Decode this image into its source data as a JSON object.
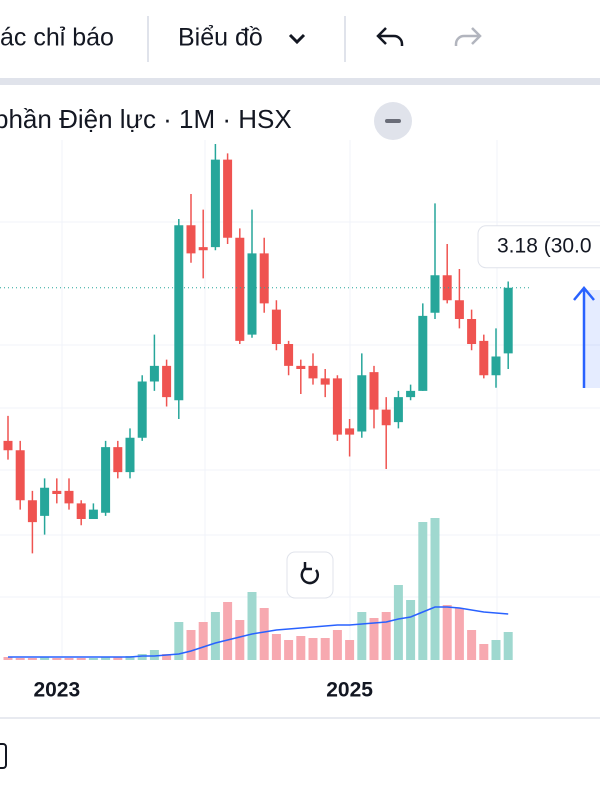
{
  "toolbar": {
    "indicators": "ác chỉ báo",
    "chart_type": "Biểu đồ"
  },
  "chart_data": {
    "type": "candlestick",
    "title": "phần Điện lực · 1M · HSX",
    "last_label": "3.18 (30.0",
    "categories": [
      null,
      null,
      null,
      null,
      "2023",
      null,
      null,
      null,
      null,
      null,
      null,
      null,
      null,
      null,
      null,
      null,
      null,
      null,
      null,
      null,
      null,
      null,
      null,
      null,
      null,
      null,
      null,
      null,
      "2025",
      null,
      null,
      null,
      null,
      null,
      null,
      null,
      null,
      null,
      null,
      null,
      null,
      null
    ],
    "open": [
      2.69,
      2.66,
      2.5,
      2.45,
      2.53,
      2.53,
      2.49,
      2.44,
      2.46,
      2.67,
      2.59,
      2.7,
      2.88,
      2.93,
      2.82,
      3.38,
      3.31,
      3.31,
      3.59,
      3.34,
      3.03,
      3.29,
      3.11,
      3.0,
      2.93,
      2.93,
      2.89,
      2.89,
      2.73,
      2.72,
      2.91,
      2.79,
      2.75,
      2.83,
      2.85,
      3.1,
      3.22,
      3.14,
      3.08,
      3.01,
      2.9,
      2.97
    ],
    "high": [
      2.77,
      2.69,
      2.53,
      2.57,
      2.57,
      2.57,
      2.5,
      2.49,
      2.69,
      2.69,
      2.73,
      2.9,
      3.03,
      2.95,
      3.4,
      3.48,
      3.43,
      3.64,
      3.61,
      3.37,
      3.43,
      3.34,
      3.14,
      3.01,
      2.95,
      2.97,
      2.92,
      2.9,
      2.76,
      2.97,
      2.93,
      2.83,
      2.85,
      2.87,
      3.13,
      3.45,
      3.32,
      3.24,
      3.11,
      3.03,
      3.05,
      3.2
    ],
    "low": [
      2.63,
      2.47,
      2.33,
      2.39,
      2.49,
      2.47,
      2.42,
      2.44,
      2.45,
      2.57,
      2.57,
      2.69,
      2.85,
      2.8,
      2.76,
      3.26,
      3.21,
      3.3,
      3.32,
      3.0,
      3.02,
      3.1,
      2.98,
      2.9,
      2.84,
      2.87,
      2.83,
      2.69,
      2.64,
      2.7,
      2.73,
      2.6,
      2.73,
      2.82,
      2.85,
      3.08,
      3.13,
      3.05,
      2.98,
      2.89,
      2.86,
      2.92
    ],
    "close": [
      2.66,
      2.5,
      2.43,
      2.54,
      2.52,
      2.49,
      2.44,
      2.47,
      2.67,
      2.59,
      2.7,
      2.88,
      2.93,
      2.83,
      3.38,
      3.29,
      3.3,
      3.59,
      3.34,
      3.01,
      3.29,
      3.13,
      3.0,
      2.93,
      2.92,
      2.89,
      2.87,
      2.71,
      2.71,
      2.9,
      2.79,
      2.74,
      2.83,
      2.85,
      3.09,
      3.22,
      3.14,
      3.08,
      3.0,
      2.9,
      2.96,
      3.18
    ],
    "ylim": [
      2.2,
      3.8
    ],
    "up_color": "#26a69a",
    "down_color": "#ef5350",
    "volume": {
      "values": [
        3,
        2,
        2,
        3,
        2,
        2,
        2,
        2,
        3,
        3,
        4,
        6,
        10,
        6,
        38,
        30,
        38,
        48,
        58,
        40,
        68,
        52,
        26,
        20,
        24,
        22,
        22,
        30,
        20,
        48,
        42,
        48,
        75,
        60,
        138,
        142,
        55,
        52,
        30,
        16,
        20,
        28
      ],
      "ma": [
        3,
        3,
        3,
        3,
        3,
        3,
        3,
        3,
        3,
        3,
        3,
        4,
        4,
        5,
        6,
        9,
        13,
        17,
        20,
        23,
        26,
        28,
        30,
        31,
        32,
        33,
        34,
        35,
        35,
        36,
        37,
        38,
        41,
        43,
        48,
        53,
        53,
        52,
        50,
        48,
        47,
        46
      ],
      "ylim": [
        0,
        150
      ],
      "up_color": "#9fd8cf",
      "down_color": "#f7a9b0",
      "ma_color": "#2962ff"
    }
  }
}
